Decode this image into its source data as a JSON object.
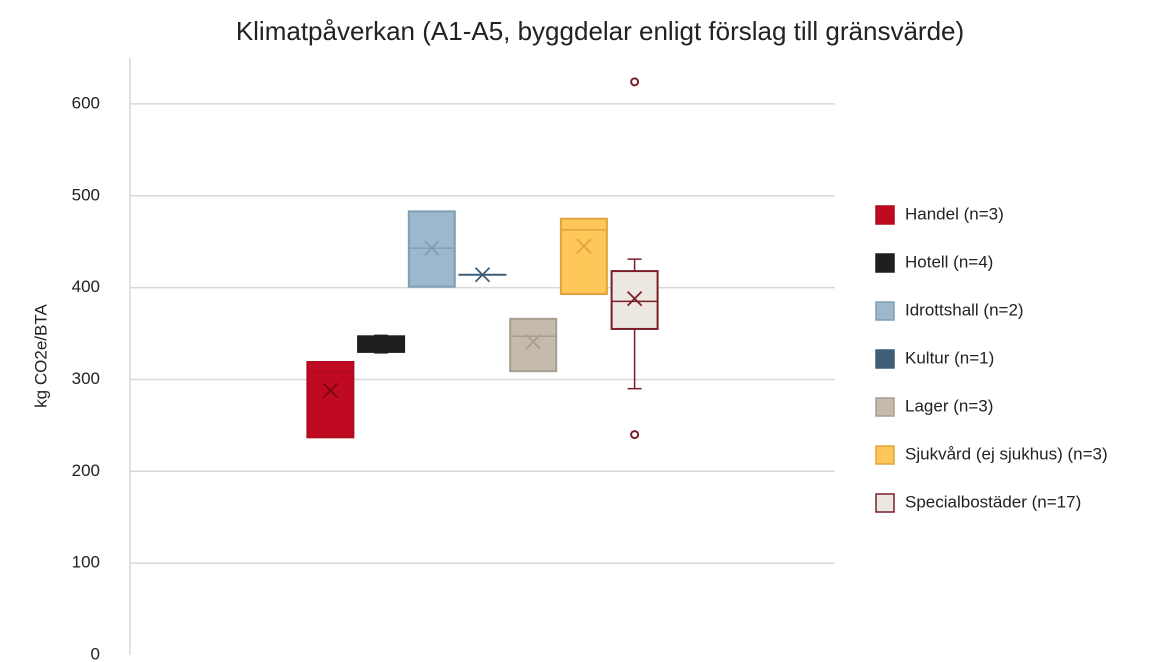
{
  "chart_data": {
    "type": "box",
    "title": "Klimatpåverkan  (A1-A5, byggdelar enligt förslag till gränsvärde)",
    "y_label": "kg CO2e/BTA",
    "ylim": [
      0,
      650
    ],
    "yticks": [
      0,
      100,
      200,
      300,
      400,
      500,
      600
    ],
    "grid": true,
    "legend": "right",
    "series": [
      {
        "name": "Handel (n=3)",
        "color": "#c00a22",
        "edge": "#b00a20",
        "min": 237,
        "q1": 237,
        "median": 308,
        "q3": 319,
        "max": 319,
        "mean": 288,
        "outliers": []
      },
      {
        "name": "Hotell (n=4)",
        "color": "#1f1f1f",
        "edge": "#1f1f1f",
        "min": 329,
        "q1": 330,
        "median": 340,
        "q3": 347,
        "max": 348,
        "mean": 339,
        "outliers": []
      },
      {
        "name": "Idrottshall (n=2)",
        "color": "#9db8cc",
        "edge": "#7f9fb5",
        "min": 401,
        "q1": 401,
        "median": 443,
        "q3": 483,
        "max": 483,
        "mean": 443,
        "outliers": []
      },
      {
        "name": "Kultur (n=1)",
        "color": "#3f5f78",
        "edge": "#3f5f78",
        "min": 414,
        "q1": 414,
        "median": 414,
        "q3": 414,
        "max": 414,
        "mean": 414,
        "outliers": []
      },
      {
        "name": "Lager (n=3)",
        "color": "#c5bbac",
        "edge": "#a89e90",
        "min": 309,
        "q1": 309,
        "median": 347,
        "q3": 366,
        "max": 366,
        "mean": 341,
        "outliers": []
      },
      {
        "name": "Sjukvård (ej sjukhus) (n=3)",
        "color": "#ffc659",
        "edge": "#e0a53a",
        "min": 393,
        "q1": 393,
        "median": 463,
        "q3": 475,
        "max": 475,
        "mean": 445,
        "outliers": []
      },
      {
        "name": "Specialbostäder (n=17)",
        "color": "#ece8e0",
        "edge": "#7a1e2a",
        "min": 290,
        "q1": 355,
        "median": 385,
        "q3": 418,
        "max": 431,
        "mean": 388,
        "outliers": [
          624,
          240
        ]
      }
    ]
  }
}
